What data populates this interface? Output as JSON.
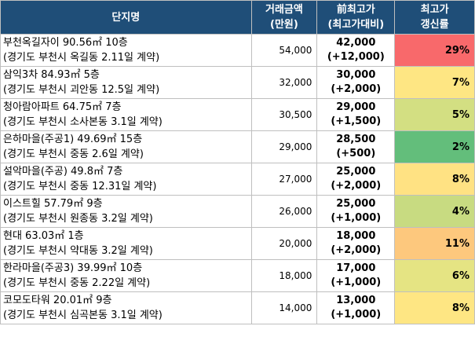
{
  "headers": {
    "name": "단지명",
    "amount": [
      "거래금액",
      "(만원)"
    ],
    "prev": [
      "前최고가",
      "(최고가대비)"
    ],
    "rate": [
      "최고가",
      "갱신률"
    ]
  },
  "rows": [
    {
      "name": "부천옥길자이 90.56㎡ 10층",
      "location": "(경기도 부천시 옥길동 2.11일 계약)",
      "amount": "54,000",
      "prev": "42,000",
      "diff": "(+12,000)",
      "rate": "29%",
      "color": "#f8696b"
    },
    {
      "name": "삼익3차 84.93㎡ 5층",
      "location": "(경기도 부천시 괴안동 12.5일 계약)",
      "amount": "32,000",
      "prev": "30,000",
      "diff": "(+2,000)",
      "rate": "7%",
      "color": "#fee683"
    },
    {
      "name": "청아람아파트 64.75㎡ 7층",
      "location": "(경기도 부천시 소사본동 3.1일 계약)",
      "amount": "30,500",
      "prev": "29,000",
      "diff": "(+1,500)",
      "rate": "5%",
      "color": "#d3df82"
    },
    {
      "name": "은하마을(주공1) 49.69㎡ 15층",
      "location": "(경기도 부천시 중동 2.6일 계약)",
      "amount": "29,000",
      "prev": "28,500",
      "diff": "(+500)",
      "rate": "2%",
      "color": "#63be7b"
    },
    {
      "name": "설악마을(주공) 49.8㎡ 7층",
      "location": "(경기도 부천시 중동 12.31일 계약)",
      "amount": "27,000",
      "prev": "25,000",
      "diff": "(+2,000)",
      "rate": "8%",
      "color": "#ffe283"
    },
    {
      "name": "이스트힐 57.79㎡ 9층",
      "location": "(경기도 부천시 원종동 3.2일 계약)",
      "amount": "26,000",
      "prev": "25,000",
      "diff": "(+1,000)",
      "rate": "4%",
      "color": "#c8db81"
    },
    {
      "name": "현대 63.03㎡ 1층",
      "location": "(경기도 부천시 약대동 3.2일 계약)",
      "amount": "20,000",
      "prev": "18,000",
      "diff": "(+2,000)",
      "rate": "11%",
      "color": "#fdc87d"
    },
    {
      "name": "한라마을(주공3) 39.99㎡ 10층",
      "location": "(경기도 부천시 중동 2.22일 계약)",
      "amount": "18,000",
      "prev": "17,000",
      "diff": "(+1,000)",
      "rate": "6%",
      "color": "#e5e483"
    },
    {
      "name": "코모도타워 20.01㎡ 9층",
      "location": "(경기도 부천시 심곡본동 3.1일 계약)",
      "amount": "14,000",
      "prev": "13,000",
      "diff": "(+1,000)",
      "rate": "8%",
      "color": "#fee683"
    }
  ]
}
